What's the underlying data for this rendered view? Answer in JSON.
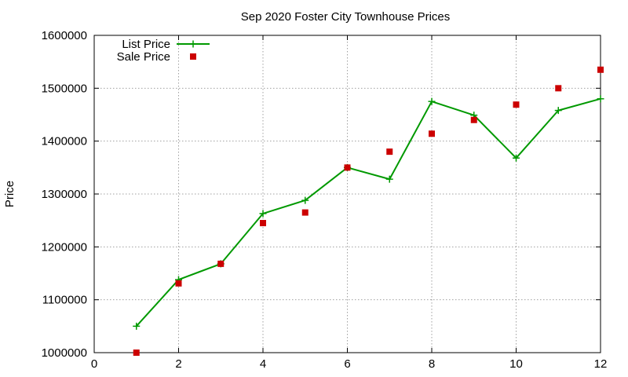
{
  "chart_data": {
    "type": "line",
    "title": "Sep 2020 Foster City Townhouse Prices",
    "xlabel": "",
    "ylabel": "Price",
    "xlim": [
      0,
      12
    ],
    "ylim": [
      1000000,
      1600000
    ],
    "xticks": [
      "0",
      "2",
      "4",
      "6",
      "8",
      "10",
      "12"
    ],
    "yticks": [
      "1000000",
      "1100000",
      "1200000",
      "1300000",
      "1400000",
      "1500000",
      "1600000"
    ],
    "grid": true,
    "legend_position": "top-left",
    "x": [
      1,
      2,
      3,
      4,
      5,
      6,
      7,
      8,
      9,
      10,
      11,
      12
    ],
    "series": [
      {
        "name": "List Price",
        "style": "line-plus",
        "color": "#009900",
        "values": [
          1050000,
          1138000,
          1168000,
          1263000,
          1288000,
          1350000,
          1328000,
          1475000,
          1449000,
          1368000,
          1458000,
          1480000
        ]
      },
      {
        "name": "Sale Price",
        "style": "square",
        "color": "#cc0000",
        "values": [
          1000000,
          1131000,
          1168000,
          1245000,
          1265000,
          1350000,
          1380000,
          1414000,
          1440000,
          1469000,
          1500000,
          1535000
        ]
      }
    ]
  }
}
